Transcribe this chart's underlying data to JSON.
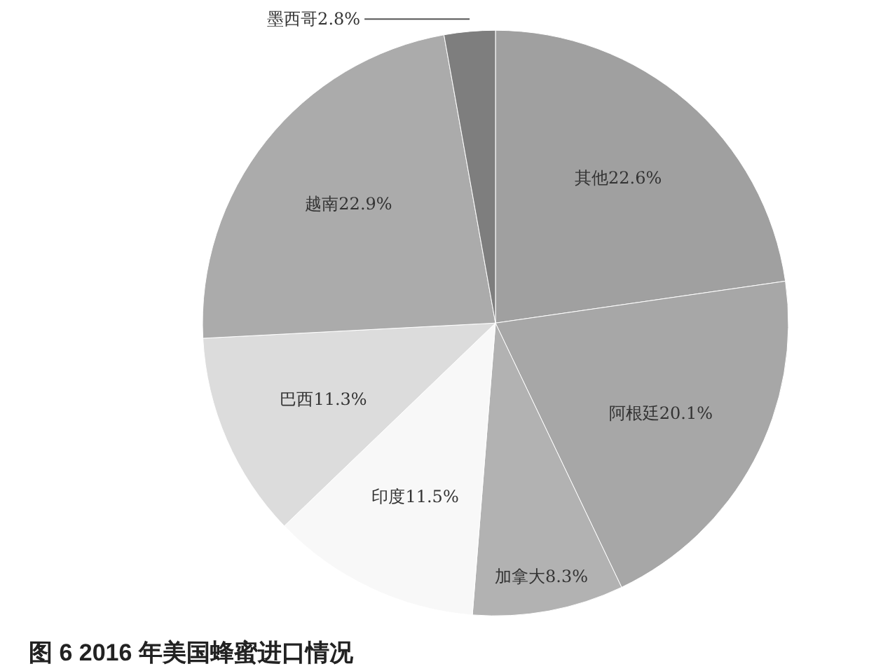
{
  "chart_data": {
    "type": "pie",
    "title": "图 6  2016 年美国蜂蜜进口情况",
    "categories": [
      "其他",
      "阿根廷",
      "加拿大",
      "印度",
      "巴西",
      "越南",
      "墨西哥"
    ],
    "values": [
      22.6,
      20.1,
      8.3,
      11.5,
      11.3,
      22.9,
      2.8
    ],
    "value_labels": [
      "22.6%",
      "20.1%",
      "8.3%",
      "11.5%",
      "11.3%",
      "22.9%",
      "2.8%"
    ],
    "colors": [
      "#a0a0a0",
      "#a7a7a7",
      "#b2b2b2",
      "#f8f8f8",
      "#dcdcdc",
      "#ababab",
      "#7e7e7e"
    ]
  }
}
